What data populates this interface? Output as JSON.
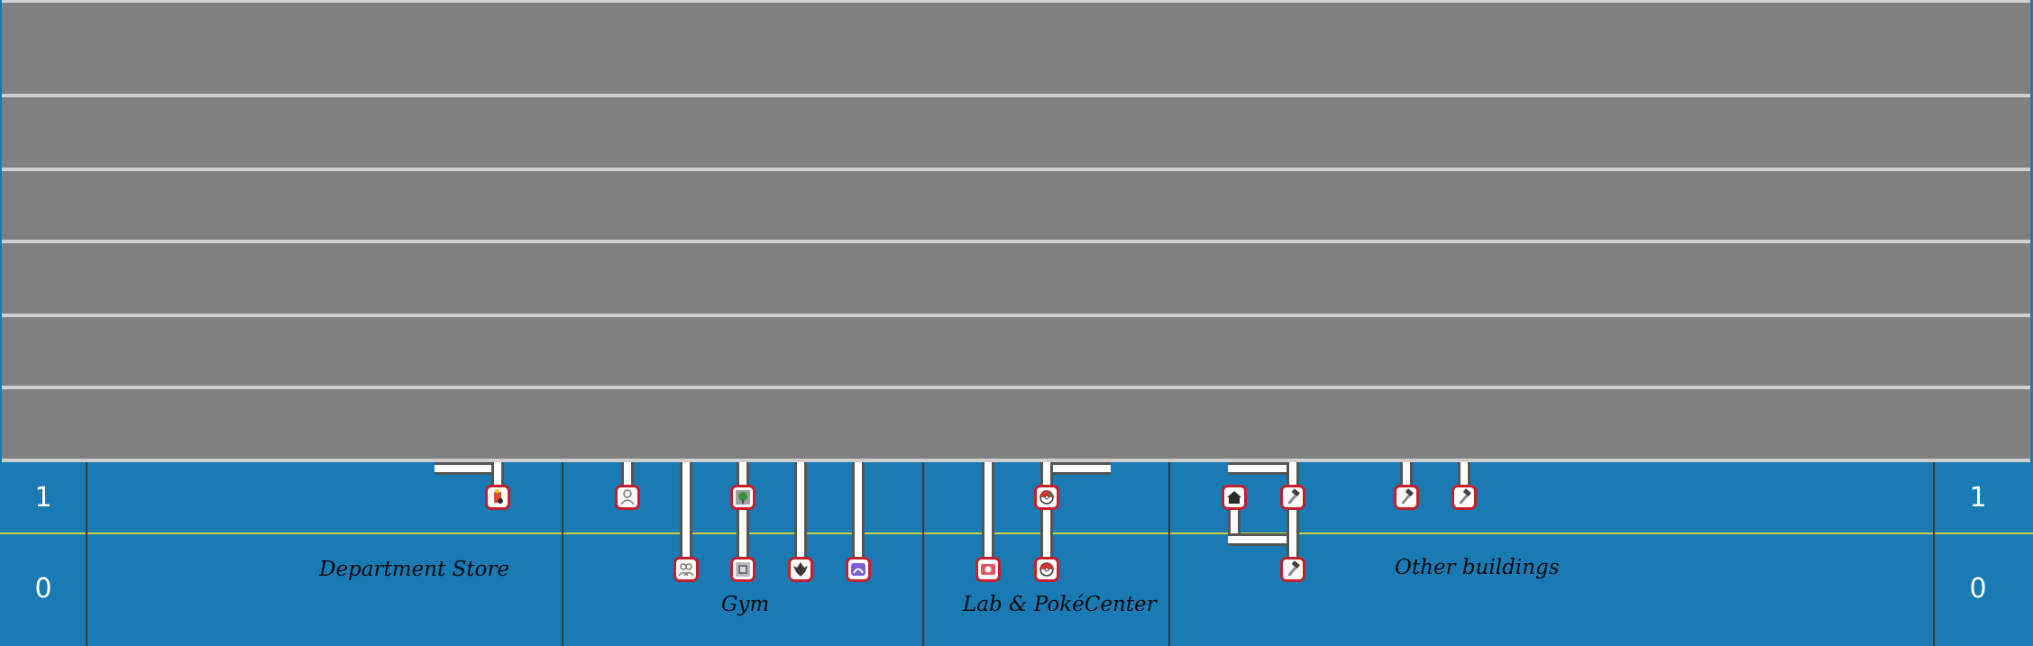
{
  "floors": {
    "left": [
      "1",
      "0"
    ],
    "right": [
      "1",
      "0"
    ]
  },
  "buildings": {
    "department_store": "Department Store",
    "gym": "Gym",
    "lab_pokecenter": "Lab & PokéCenter",
    "other": "Other buildings"
  },
  "colors": {
    "background": "#1a7ab4",
    "upper_bands": "#808080",
    "band_separator": "#cfcfcf",
    "floor_divider": "#c9d23a",
    "icon_border": "#c4202b"
  },
  "icons": [
    "item-bag-icon",
    "person-icon",
    "trainers-icon",
    "tree-icon",
    "statue-icon",
    "dragon-icon",
    "arc-icon",
    "lab-icon",
    "pokeball-icon",
    "pokeball-icon",
    "house-icon",
    "hammer-icon",
    "hammer-icon",
    "hammer-icon",
    "hammer-icon"
  ]
}
